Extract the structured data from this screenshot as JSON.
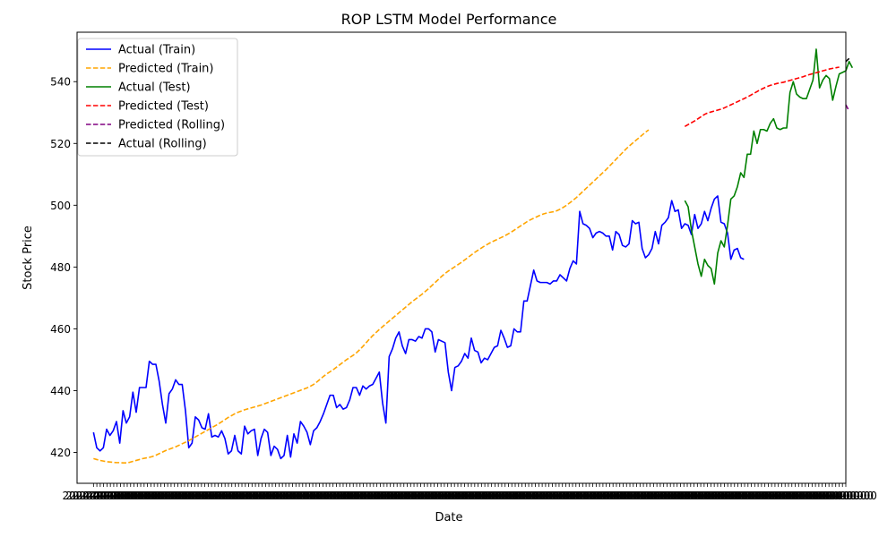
{
  "chart_data": {
    "type": "line",
    "title": "ROP LSTM Model Performance",
    "xlabel": "Date",
    "ylabel": "Stock Price",
    "ylim": [
      410,
      556
    ],
    "yticks": [
      420,
      440,
      460,
      480,
      500,
      520,
      540
    ],
    "xlim": [
      -5,
      229
    ],
    "x_tick_count": 224,
    "x_tick_label": "2024-00-00",
    "grid": false,
    "legend_position": "upper-left",
    "series": [
      {
        "name": "Actual (Train)",
        "color": "#0000ff",
        "style": "solid",
        "x_start": 0,
        "values": [
          426.5,
          421.5,
          420.5,
          421.5,
          427.5,
          425.5,
          427,
          430,
          423,
          433.5,
          429.5,
          431.5,
          439.5,
          433,
          441,
          441,
          441,
          449.5,
          448.5,
          448.5,
          443,
          435.5,
          429.5,
          439,
          440.5,
          443.5,
          442,
          442,
          433.5,
          421.5,
          423,
          431.5,
          430.5,
          428,
          427.5,
          432.5,
          425,
          425.5,
          425,
          427,
          424.5,
          419.5,
          420.5,
          425.5,
          420.5,
          419.5,
          428.5,
          426,
          427,
          427.5,
          419,
          424.5,
          427.5,
          426.5,
          419,
          422,
          421,
          418,
          419,
          425.5,
          418.5,
          426,
          423,
          430,
          428.5,
          426.5,
          422.5,
          427,
          428,
          430,
          432.5,
          435.5,
          438.5,
          438.5,
          434.5,
          435.5,
          434,
          434.5,
          437,
          441,
          441,
          438.5,
          441.5,
          440.5,
          441.5,
          442,
          444,
          446,
          436,
          429.5,
          451,
          453.5,
          457,
          459,
          454.5,
          452,
          456.5,
          456.5,
          456,
          457.5,
          457,
          460,
          460,
          459,
          452.5,
          456.5,
          456,
          455.5,
          446,
          440,
          447.5,
          448,
          449.5,
          452,
          450.5,
          457,
          453,
          452.5,
          449,
          450.5,
          450,
          452,
          454,
          454.5,
          459.5,
          457,
          454,
          454.5,
          460,
          459,
          459,
          469,
          469,
          474,
          479,
          475.5,
          475,
          475,
          475,
          474.5,
          475.5,
          475.5,
          477.5,
          476.5,
          475.5,
          479.5,
          482,
          481,
          498,
          494,
          493.5,
          492.5,
          489.5,
          491,
          491.5,
          491,
          490,
          490,
          485.5,
          491.5,
          490.5,
          487,
          486.5,
          487.5,
          495,
          494,
          494.5,
          486,
          483,
          484,
          486,
          491.5,
          487.5,
          493.5,
          494.5,
          496,
          501.5,
          498,
          498.5,
          492.5,
          494,
          493.5,
          490.5,
          497,
          492.5,
          494,
          498,
          495,
          499,
          502,
          503,
          494.5,
          494,
          491,
          482.5,
          485.5,
          486,
          483,
          482.5
        ]
      },
      {
        "name": "Predicted (Train)",
        "color": "#ffa500",
        "style": "dashed",
        "x_start": 0,
        "values": [
          418.0,
          417.7,
          417.4,
          417.2,
          417.0,
          416.9,
          416.8,
          416.7,
          416.7,
          416.6,
          416.6,
          416.8,
          417.1,
          417.4,
          417.7,
          418.0,
          418.2,
          418.4,
          418.7,
          419.1,
          419.6,
          420.1,
          420.6,
          421.0,
          421.4,
          421.8,
          422.3,
          422.8,
          423.3,
          423.8,
          424.4,
          425.0,
          425.6,
          426.2,
          426.8,
          427.4,
          428.0,
          428.6,
          429.2,
          429.9,
          430.6,
          431.3,
          431.9,
          432.5,
          433.0,
          433.4,
          433.8,
          434.1,
          434.4,
          434.7,
          435.0,
          435.3,
          435.7,
          436.1,
          436.5,
          436.9,
          437.3,
          437.7,
          438.1,
          438.5,
          438.9,
          439.3,
          439.7,
          440.1,
          440.5,
          440.9,
          441.4,
          442.0,
          442.8,
          443.7,
          444.6,
          445.4,
          446.1,
          446.8,
          447.6,
          448.4,
          449.2,
          450.0,
          450.7,
          451.4,
          452.2,
          453.2,
          454.3,
          455.5,
          456.7,
          457.8,
          458.8,
          459.8,
          460.7,
          461.6,
          462.5,
          463.4,
          464.3,
          465.2,
          466.1,
          467.0,
          467.9,
          468.8,
          469.6,
          470.4,
          471.2,
          472.1,
          473.0,
          474.0,
          475.0,
          476.0,
          477.0,
          477.9,
          478.7,
          479.4,
          480.1,
          480.8,
          481.5,
          482.3,
          483.1,
          483.9,
          484.7,
          485.4,
          486.1,
          486.8,
          487.4,
          488.0,
          488.5,
          489.0,
          489.5,
          490.0,
          490.6,
          491.2,
          491.9,
          492.6,
          493.3,
          494.0,
          494.7,
          495.3,
          495.8,
          496.3,
          496.8,
          497.2,
          497.5,
          497.7,
          497.9,
          498.2,
          498.7,
          499.3,
          500.0,
          500.8,
          501.6,
          502.5,
          503.5,
          504.5,
          505.5,
          506.5,
          507.5,
          508.5,
          509.5,
          510.5,
          511.5,
          512.6,
          513.7,
          514.8,
          515.9,
          517.0,
          518.1,
          519.1,
          520.0,
          520.9,
          521.8,
          522.7,
          523.6,
          524.4
        ]
      },
      {
        "name": "Actual (Test)",
        "color": "#008000",
        "style": "solid",
        "x_start": 180,
        "values": [
          501.5,
          499.5,
          492,
          486.5,
          481,
          477,
          482.5,
          480.5,
          479.5,
          474.5,
          484.5,
          488.5,
          486.5,
          493.5,
          502,
          503,
          506,
          510.5,
          509,
          516.5,
          516.5,
          524,
          520,
          524.5,
          524.5,
          524,
          526.5,
          528,
          525,
          524.5,
          525,
          525,
          536.5,
          540,
          536,
          535,
          534.5,
          534.5,
          537.5,
          540.5,
          550.5,
          538,
          540.5,
          542,
          541,
          534,
          538.5,
          542.5,
          543,
          543.5,
          546.5,
          544.5
        ]
      },
      {
        "name": "Predicted (Test)",
        "color": "#ff0000",
        "style": "dashed",
        "x_start": 180,
        "values": [
          525.5,
          526.1,
          526.7,
          527.3,
          528.0,
          528.7,
          529.4,
          529.9,
          530.2,
          530.5,
          530.8,
          531.1,
          531.5,
          532.0,
          532.5,
          533.0,
          533.5,
          534.0,
          534.5,
          535.0,
          535.6,
          536.2,
          536.8,
          537.4,
          537.9,
          538.4,
          538.8,
          539.1,
          539.4,
          539.6,
          539.8,
          540.1,
          540.4,
          540.7,
          541.0,
          541.3,
          541.6,
          542.0,
          542.3,
          542.6,
          542.9,
          543.2,
          543.5,
          543.8,
          544.1,
          544.3,
          544.5,
          544.7
        ]
      },
      {
        "name": "Predicted (Rolling)",
        "color": "#800080",
        "style": "dashed",
        "x_start": 229,
        "values": [
          532.5,
          530.5
        ]
      },
      {
        "name": "Actual (Rolling)",
        "color": "#000000",
        "style": "dashed",
        "x_start": 229,
        "values": [
          546.5,
          547.5
        ]
      }
    ]
  }
}
